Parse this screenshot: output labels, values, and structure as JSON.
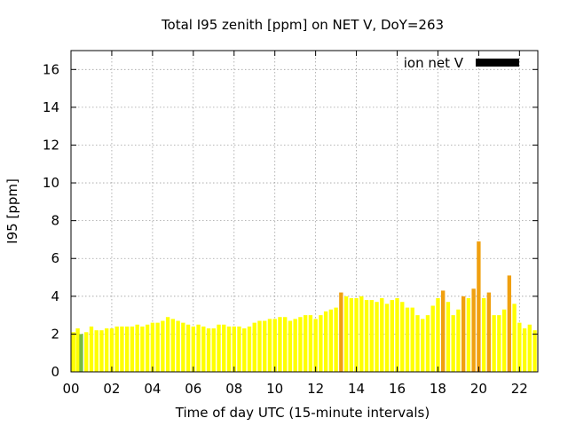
{
  "chart_data": {
    "type": "bar",
    "title": "Total I95 zenith [ppm] on NET V, DoY=263",
    "xlabel": "Time of day UTC (15-minute intervals)",
    "ylabel": "I95 [ppm]",
    "xlim": [
      0,
      22.9
    ],
    "ylim": [
      0,
      17
    ],
    "x_ticks": [
      "00",
      "02",
      "04",
      "06",
      "08",
      "10",
      "12",
      "14",
      "16",
      "18",
      "20",
      "22"
    ],
    "y_ticks": [
      "0",
      "2",
      "4",
      "6",
      "8",
      "10",
      "12",
      "14",
      "16"
    ],
    "grid": true,
    "legend": {
      "position": "top-right",
      "entries": [
        {
          "label": "ion net V",
          "color": "#000000"
        }
      ]
    },
    "bar_width_hours": 0.19,
    "x": [
      0.12,
      0.33,
      0.5,
      0.75,
      1.0,
      1.25,
      1.5,
      1.75,
      2.0,
      2.25,
      2.5,
      2.75,
      3.0,
      3.25,
      3.5,
      3.75,
      4.0,
      4.25,
      4.5,
      4.75,
      5.0,
      5.25,
      5.5,
      5.75,
      6.0,
      6.25,
      6.5,
      6.75,
      7.0,
      7.25,
      7.5,
      7.75,
      8.0,
      8.25,
      8.5,
      8.75,
      9.0,
      9.25,
      9.5,
      9.75,
      10.0,
      10.25,
      10.5,
      10.75,
      11.0,
      11.25,
      11.5,
      11.75,
      12.0,
      12.25,
      12.5,
      12.75,
      13.0,
      13.25,
      13.5,
      13.75,
      14.0,
      14.25,
      14.5,
      14.75,
      15.0,
      15.25,
      15.5,
      15.75,
      16.0,
      16.25,
      16.5,
      16.75,
      17.0,
      17.25,
      17.5,
      17.75,
      18.0,
      18.25,
      18.5,
      18.75,
      19.0,
      19.25,
      19.5,
      19.75,
      20.0,
      20.25,
      20.5,
      20.75,
      21.0,
      21.25,
      21.5,
      21.75,
      22.0,
      22.25,
      22.5,
      22.75
    ],
    "values": [
      2.1,
      2.3,
      2.0,
      2.1,
      2.4,
      2.2,
      2.2,
      2.3,
      2.3,
      2.4,
      2.4,
      2.4,
      2.4,
      2.5,
      2.4,
      2.5,
      2.6,
      2.6,
      2.7,
      2.9,
      2.8,
      2.7,
      2.6,
      2.5,
      2.4,
      2.5,
      2.4,
      2.3,
      2.3,
      2.5,
      2.5,
      2.4,
      2.4,
      2.4,
      2.3,
      2.4,
      2.6,
      2.7,
      2.7,
      2.8,
      2.8,
      2.9,
      2.9,
      2.7,
      2.8,
      2.9,
      3.0,
      3.0,
      2.8,
      3.0,
      3.2,
      3.3,
      3.4,
      4.2,
      4.0,
      3.9,
      3.9,
      4.0,
      3.8,
      3.8,
      3.7,
      3.9,
      3.6,
      3.8,
      3.9,
      3.7,
      3.4,
      3.4,
      3.0,
      2.8,
      3.0,
      3.5,
      3.9,
      4.3,
      3.7,
      3.0,
      3.3,
      4.0,
      3.9,
      4.4,
      6.9,
      3.9,
      4.2,
      3.0,
      3.0,
      3.3,
      5.1,
      3.6,
      2.6,
      2.3,
      2.5,
      2.2
    ],
    "colors": [
      "#ffff00",
      "#ffff00",
      "#77bb44",
      "#ffff00",
      "#ffff00",
      "#ffff00",
      "#ffff00",
      "#ffff00",
      "#ffff00",
      "#ffff00",
      "#ffff00",
      "#ffff00",
      "#ffff00",
      "#ffff00",
      "#ffff00",
      "#ffff00",
      "#ffff00",
      "#ffff00",
      "#ffff00",
      "#ffff00",
      "#ffff00",
      "#ffff00",
      "#ffff00",
      "#ffff00",
      "#ffff00",
      "#ffff00",
      "#ffff00",
      "#ffff00",
      "#ffff00",
      "#ffff00",
      "#ffff00",
      "#ffff00",
      "#ffff00",
      "#ffff00",
      "#ffff00",
      "#ffff00",
      "#ffff00",
      "#ffff00",
      "#ffff00",
      "#ffff00",
      "#ffff00",
      "#ffff00",
      "#ffff00",
      "#ffff00",
      "#ffff00",
      "#ffff00",
      "#ffff00",
      "#ffff00",
      "#ffff00",
      "#ffff00",
      "#ffff00",
      "#ffff00",
      "#ffff00",
      "#f0a010",
      "#ffff00",
      "#ffff00",
      "#ffff00",
      "#ffff00",
      "#ffff00",
      "#ffff00",
      "#ffff00",
      "#ffff00",
      "#ffff00",
      "#ffff00",
      "#ffff00",
      "#ffff00",
      "#ffff00",
      "#ffff00",
      "#ffff00",
      "#ffff00",
      "#ffff00",
      "#ffff00",
      "#ffff00",
      "#f0a010",
      "#ffff00",
      "#ffff00",
      "#ffff00",
      "#f0a010",
      "#ffff00",
      "#f0a010",
      "#f0a010",
      "#ffff00",
      "#f0a010",
      "#ffff00",
      "#ffff00",
      "#ffff00",
      "#f0a010",
      "#ffff00",
      "#ffff00",
      "#ffff00",
      "#ffff00",
      "#ffff00"
    ]
  }
}
